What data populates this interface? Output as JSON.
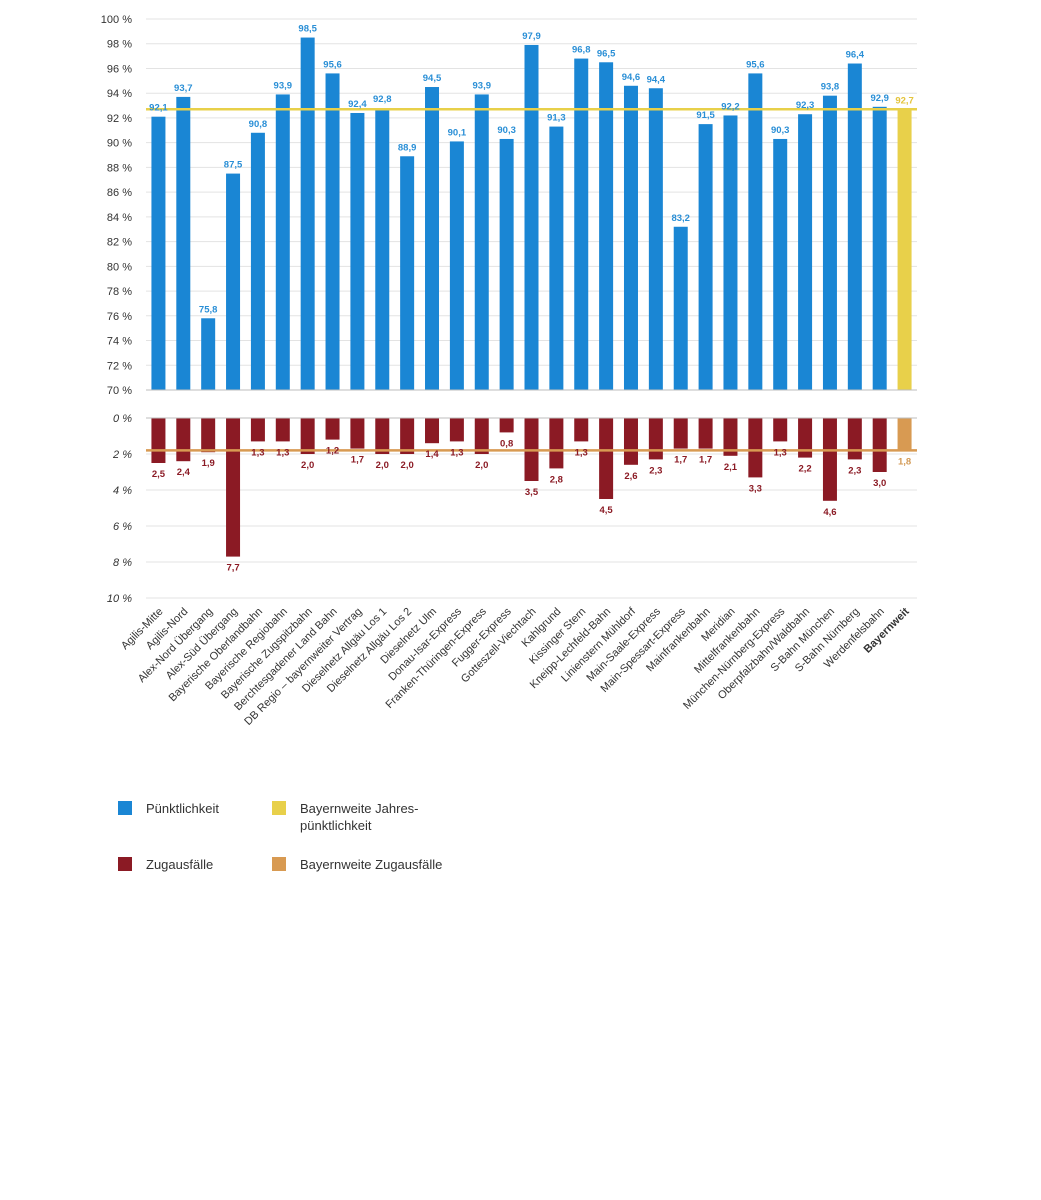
{
  "chart_data": {
    "type": "bar",
    "categories": [
      "Agilis-Mitte",
      "Agilis-Nord",
      "Alex-Nord Übergang",
      "Alex-Süd Übergang",
      "Bayerische Oberlandbahn",
      "Bayerische Regiobahn",
      "Bayerische Zugspitzbahn",
      "Berchtesgadener Land Bahn",
      "DB Regio – bayernweiter Vertrag",
      "Dieselnetz Allgäu Los 1",
      "Dieselnetz Allgäu Los 2",
      "Dieselnetz Ulm",
      "Donau-Isar-Express",
      "Franken-Thüringen-Express",
      "Fugger-Express",
      "Gotteszell-Viechtach",
      "Kahlgrund",
      "Kissinger Stern",
      "Kneipp-Lechfeld-Bahn",
      "Linienstern Mühldorf",
      "Main-Saale-Express",
      "Main-Spessart-Express",
      "Mainfrankenbahn",
      "Meridian",
      "Mittelfrankenbahn",
      "München-Nürnberg-Express",
      "Oberpfalzbahn/Waldbahn",
      "S-Bahn München",
      "S-Bahn Nürnberg",
      "Werdenfelsbahn",
      "Bayernweit"
    ],
    "top_panel": {
      "series_name": "Pünktlichkeit",
      "values": [
        92.1,
        93.7,
        75.8,
        87.5,
        90.8,
        93.9,
        98.5,
        95.6,
        92.4,
        92.8,
        88.9,
        94.5,
        90.1,
        93.9,
        90.3,
        97.9,
        91.3,
        96.8,
        96.5,
        94.6,
        94.4,
        83.2,
        91.5,
        92.2,
        95.6,
        90.3,
        92.3,
        93.8,
        96.4,
        92.9,
        92.7
      ],
      "value_labels": [
        "92,1",
        "93,7",
        "75,8",
        "87,5",
        "90,8",
        "93,9",
        "98,5",
        "95,6",
        "92,4",
        "92,8",
        "88,9",
        "94,5",
        "90,1",
        "93,9",
        "90,3",
        "97,9",
        "91,3",
        "96,8",
        "96,5",
        "94,6",
        "94,4",
        "83,2",
        "91,5",
        "92,2",
        "95,6",
        "90,3",
        "92,3",
        "93,8",
        "96,4",
        "92,9",
        "92,7"
      ],
      "ylim": [
        70,
        100
      ],
      "yticks": [
        "70 %",
        "72 %",
        "74 %",
        "76 %",
        "78 %",
        "80 %",
        "82 %",
        "84 %",
        "86 %",
        "88 %",
        "90 %",
        "92 %",
        "94 %",
        "96 %",
        "98 %",
        "100 %"
      ],
      "reference_line": 92.7
    },
    "bottom_panel": {
      "series_name": "Zugausfälle",
      "values": [
        2.5,
        2.4,
        1.9,
        7.7,
        1.3,
        1.3,
        2.0,
        1.2,
        1.7,
        2.0,
        2.0,
        1.4,
        1.3,
        2.0,
        0.8,
        3.5,
        2.8,
        1.3,
        4.5,
        2.6,
        2.3,
        1.7,
        1.7,
        2.1,
        3.3,
        1.3,
        2.2,
        4.6,
        2.3,
        3.0,
        1.8
      ],
      "value_labels": [
        "2,5",
        "2,4",
        "1,9",
        "7,7",
        "1,3",
        "1,3",
        "2,0",
        "1,2",
        "1,7",
        "2,0",
        "2,0",
        "1,4",
        "1,3",
        "2,0",
        "0,8",
        "3,5",
        "2,8",
        "1,3",
        "4,5",
        "2,6",
        "2,3",
        "1,7",
        "1,7",
        "2,1",
        "3,3",
        "1,3",
        "2,2",
        "4,6",
        "2,3",
        "3,0",
        "1,8"
      ],
      "ylim": [
        0,
        10
      ],
      "yticks": [
        "0 %",
        "2 %",
        "4 %",
        "6 %",
        "8 %",
        "10 %"
      ],
      "reference_line": 1.8
    },
    "legend": [
      {
        "label": "Pünktlichkeit",
        "color": "#1a86d4"
      },
      {
        "label": "Bayernweite Jahres-pünktlichkeit",
        "color": "#e8d04a"
      },
      {
        "label": "Zugausfälle",
        "color": "#8b1a24"
      },
      {
        "label": "Bayernweite Zugausfälle",
        "color": "#d89a52"
      }
    ]
  },
  "colors": {
    "punctuality": "#1a86d4",
    "punctuality_label": "#2a8fd6",
    "cancellation": "#8b1a24",
    "bayern_punctuality": "#e8d04a",
    "bayern_punctuality_label": "#e4c43c",
    "bayern_cancellation": "#d89a52",
    "bayern_cancellation_label": "#d39a55",
    "grid": "#e3e3e3"
  }
}
